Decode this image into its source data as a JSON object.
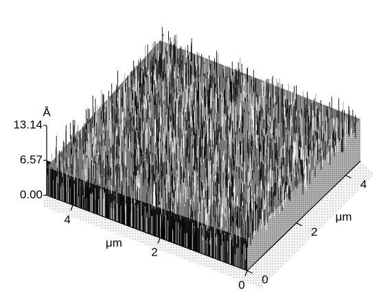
{
  "chart_data": {
    "type": "surface",
    "zlabel": "Å",
    "zlim": [
      0,
      13.14
    ],
    "zticks": [
      {
        "value": 0,
        "label": "0.00"
      },
      6.57,
      13.14
    ],
    "xlabel": "μm",
    "xlim": [
      0,
      4.6
    ],
    "xticks": [
      0,
      2,
      4
    ],
    "ylabel": "μm",
    "ylim": [
      0,
      4.6
    ],
    "yticks": [
      0,
      2,
      4
    ]
  }
}
